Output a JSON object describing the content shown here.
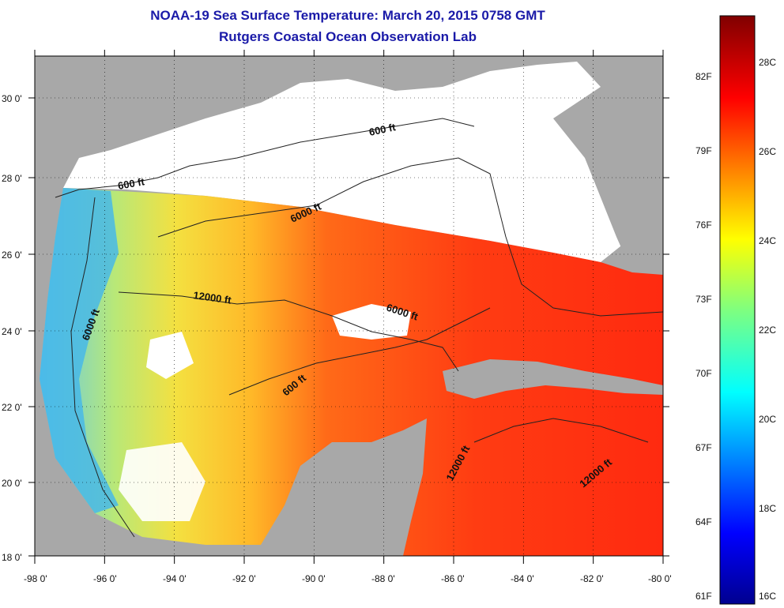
{
  "title": "NOAA-19 Sea Surface Temperature:  March 20, 2015 0758 GMT",
  "subtitle": "Rutgers Coastal Ocean Observation Lab",
  "map": {
    "lon_ticks": [
      "-98 0'",
      "-96 0'",
      "-94 0'",
      "-92 0'",
      "-90 0'",
      "-88 0'",
      "-86 0'",
      "-84 0'",
      "-82 0'",
      "-80 0'"
    ],
    "lat_ticks": [
      "30 0'",
      "28 0'",
      "26 0'",
      "24 0'",
      "22 0'",
      "20 0'",
      "18 0'"
    ],
    "contour_labels": [
      "600 ft",
      "600 ft",
      "6000 ft",
      "12000 ft",
      "6000 ft",
      "6000 ft",
      "600 ft",
      "12000 ft",
      "12000 ft"
    ],
    "colors": {
      "land": "#a8a8a8",
      "no_data": "#ffffff",
      "warm": "#ff3b10",
      "mid": "#f0e020",
      "cool": "#40c0e0"
    }
  },
  "colorbar": {
    "fahrenheit": [
      "82F",
      "79F",
      "76F",
      "73F",
      "70F",
      "67F",
      "64F",
      "61F"
    ],
    "celsius": [
      "28C",
      "26C",
      "24C",
      "22C",
      "20C",
      "18C",
      "16C"
    ],
    "colormap": "jet"
  }
}
